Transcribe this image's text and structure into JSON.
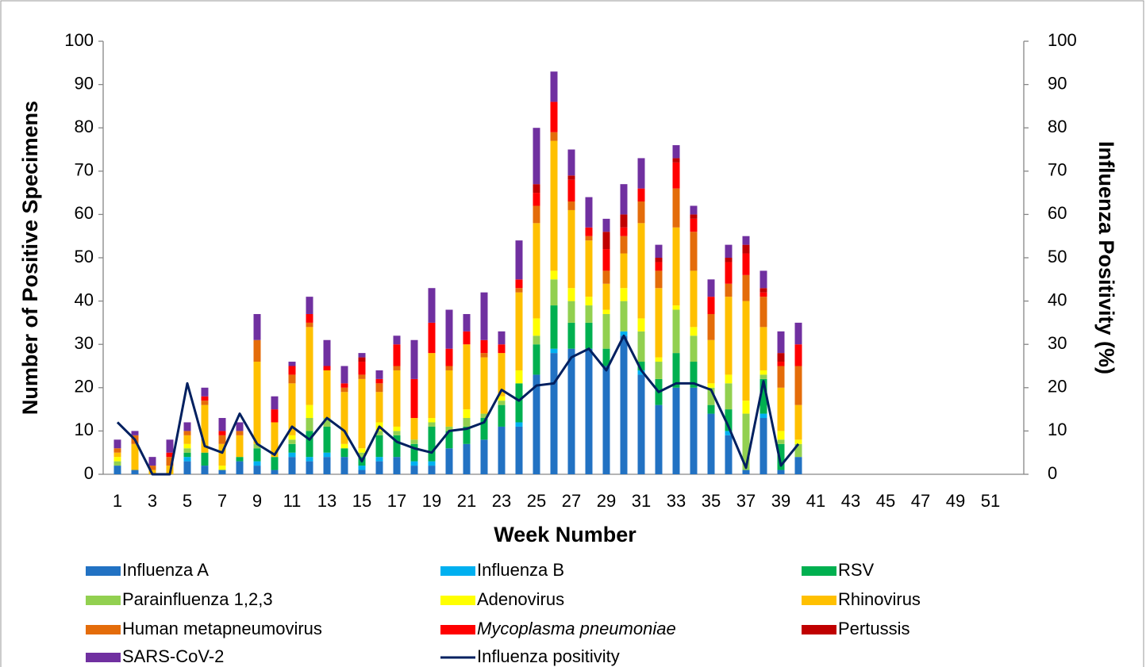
{
  "chart_data": {
    "type": "bar",
    "stacked": true,
    "x_label": "Week Number",
    "y_label": "Number of Positive Specimens",
    "y2_label": "Influenza Positivity (%)",
    "categories": [
      1,
      null,
      3,
      null,
      5,
      null,
      7,
      null,
      9,
      null,
      11,
      null,
      13,
      null,
      15,
      null,
      17,
      null,
      19,
      null,
      21,
      null,
      23,
      null,
      25,
      null,
      27,
      null,
      29,
      null,
      31,
      null,
      33,
      null,
      35,
      null,
      37,
      null,
      39,
      null,
      41,
      null,
      43,
      null,
      45,
      null,
      47,
      null,
      49,
      null,
      51,
      null
    ],
    "ylim": [
      0,
      100
    ],
    "yticks": [
      0,
      10,
      20,
      30,
      40,
      50,
      60,
      70,
      80,
      90,
      100
    ],
    "y2lim": [
      0,
      100
    ],
    "y2ticks": [
      0,
      10,
      20,
      30,
      40,
      50,
      60,
      70,
      80,
      90,
      100
    ],
    "series": [
      {
        "name": "Influenza A",
        "color": "#2272c3",
        "values": [
          2,
          1,
          0,
          0,
          3,
          2,
          1,
          3,
          2,
          1,
          4,
          3,
          4,
          4,
          1,
          3,
          4,
          2,
          2,
          6,
          7,
          8,
          11,
          11,
          23,
          28,
          29,
          29,
          25,
          32,
          23,
          16,
          20,
          20,
          14,
          9,
          1,
          13,
          1,
          4,
          null,
          null,
          null,
          null,
          null,
          null,
          null,
          null,
          null,
          null,
          null,
          null
        ]
      },
      {
        "name": "Influenza B",
        "color": "#00b0f0",
        "values": [
          0,
          0,
          0,
          0,
          1,
          0,
          0,
          0,
          1,
          0,
          1,
          1,
          1,
          0,
          1,
          1,
          0,
          1,
          1,
          0,
          0,
          0,
          0,
          1,
          0,
          1,
          0,
          0,
          0,
          1,
          1,
          0,
          0,
          0,
          0,
          1,
          0,
          1,
          0,
          0,
          null,
          null,
          null,
          null,
          null,
          null,
          null,
          null,
          null,
          null,
          null,
          null
        ]
      },
      {
        "name": "RSV",
        "color": "#00b050",
        "values": [
          0,
          0,
          0,
          0,
          1,
          3,
          0,
          1,
          3,
          3,
          2,
          6,
          6,
          2,
          2,
          5,
          5,
          4,
          8,
          4,
          4,
          5,
          5,
          9,
          7,
          10,
          6,
          6,
          4,
          0,
          2,
          6,
          8,
          6,
          2,
          5,
          0,
          8,
          6,
          0,
          null,
          null,
          null,
          null,
          null,
          null,
          null,
          null,
          null,
          null,
          null,
          null
        ]
      },
      {
        "name": "Parainfluenza 1,2,3",
        "color": "#92d050",
        "values": [
          1,
          0,
          0,
          0,
          1,
          0,
          0,
          0,
          1,
          0,
          1,
          3,
          2,
          0,
          1,
          1,
          1,
          1,
          1,
          1,
          2,
          1,
          1,
          0,
          2,
          6,
          5,
          4,
          8,
          7,
          7,
          4,
          10,
          6,
          4,
          6,
          13,
          1,
          1,
          3,
          null,
          null,
          null,
          null,
          null,
          null,
          null,
          null,
          null,
          null,
          null,
          null
        ]
      },
      {
        "name": "Adenovirus",
        "color": "#ffff00",
        "values": [
          1,
          0,
          0,
          0,
          1,
          0,
          1,
          0,
          0,
          0,
          1,
          3,
          0,
          1,
          1,
          2,
          1,
          0,
          1,
          0,
          2,
          0,
          1,
          3,
          4,
          2,
          3,
          2,
          1,
          3,
          3,
          1,
          1,
          2,
          1,
          2,
          3,
          1,
          2,
          1,
          null,
          null,
          null,
          null,
          null,
          null,
          null,
          null,
          null,
          null,
          null,
          null
        ]
      },
      {
        "name": "Rhinovirus",
        "color": "#ffc000",
        "values": [
          1,
          6,
          1,
          2,
          2,
          11,
          5,
          5,
          19,
          8,
          12,
          18,
          11,
          12,
          16,
          7,
          13,
          5,
          15,
          13,
          15,
          13,
          10,
          18,
          22,
          30,
          18,
          13,
          6,
          8,
          22,
          16,
          18,
          13,
          10,
          18,
          23,
          10,
          10,
          8,
          null,
          null,
          null,
          null,
          null,
          null,
          null,
          null,
          null,
          null,
          null,
          null
        ]
      },
      {
        "name": "Human metapneumovirus",
        "color": "#e46c0a",
        "values": [
          1,
          2,
          1,
          2,
          1,
          1,
          2,
          1,
          5,
          0,
          2,
          1,
          0,
          1,
          1,
          2,
          1,
          0,
          0,
          1,
          0,
          1,
          0,
          1,
          4,
          2,
          2,
          1,
          3,
          4,
          5,
          4,
          9,
          9,
          6,
          3,
          6,
          7,
          5,
          9,
          null,
          null,
          null,
          null,
          null,
          null,
          null,
          null,
          null,
          null,
          null,
          null
        ]
      },
      {
        "name": "Mycoplasma pneumoniae",
        "color": "#ff0000",
        "values": [
          0,
          0,
          0,
          1,
          0,
          1,
          1,
          0,
          0,
          3,
          2,
          2,
          1,
          1,
          3,
          1,
          5,
          9,
          7,
          4,
          3,
          3,
          2,
          2,
          3,
          7,
          5,
          2,
          5,
          2,
          3,
          2,
          6,
          3,
          4,
          5,
          5,
          1,
          1,
          5,
          null,
          null,
          null,
          null,
          null,
          null,
          null,
          null,
          null,
          null,
          null,
          null
        ]
      },
      {
        "name": "Pertussis",
        "color": "#c00000",
        "values": [
          0,
          0,
          0,
          0,
          0,
          0,
          0,
          0,
          0,
          0,
          0,
          0,
          0,
          0,
          1,
          0,
          0,
          0,
          0,
          0,
          0,
          0,
          0,
          0,
          2,
          0,
          1,
          0,
          4,
          3,
          0,
          1,
          1,
          1,
          0,
          1,
          2,
          1,
          2,
          0,
          null,
          null,
          null,
          null,
          null,
          null,
          null,
          null,
          null,
          null,
          null,
          null
        ]
      },
      {
        "name": "SARS-CoV-2",
        "color": "#7030a0",
        "values": [
          2,
          1,
          2,
          3,
          2,
          2,
          3,
          2,
          6,
          3,
          1,
          4,
          6,
          4,
          1,
          2,
          2,
          9,
          8,
          9,
          4,
          11,
          3,
          9,
          13,
          7,
          6,
          7,
          3,
          7,
          7,
          3,
          3,
          2,
          4,
          3,
          2,
          4,
          5,
          5,
          null,
          null,
          null,
          null,
          null,
          null,
          null,
          null,
          null,
          null,
          null,
          null
        ]
      },
      {
        "name": "Influenza positivity",
        "color": "#002060",
        "type": "line",
        "axis": "y2",
        "values": [
          12,
          8,
          0,
          0,
          21,
          6.5,
          5,
          14,
          7,
          4.5,
          11,
          8,
          13,
          10,
          3,
          11,
          7.5,
          6,
          5,
          10,
          10.5,
          12,
          19.5,
          17,
          20.5,
          21,
          27,
          29,
          24,
          32,
          24,
          19,
          21,
          21,
          19.5,
          11,
          1.5,
          21.5,
          2,
          7,
          null,
          null,
          null,
          null,
          null,
          null,
          null,
          null,
          null,
          null,
          null,
          null
        ]
      }
    ]
  }
}
